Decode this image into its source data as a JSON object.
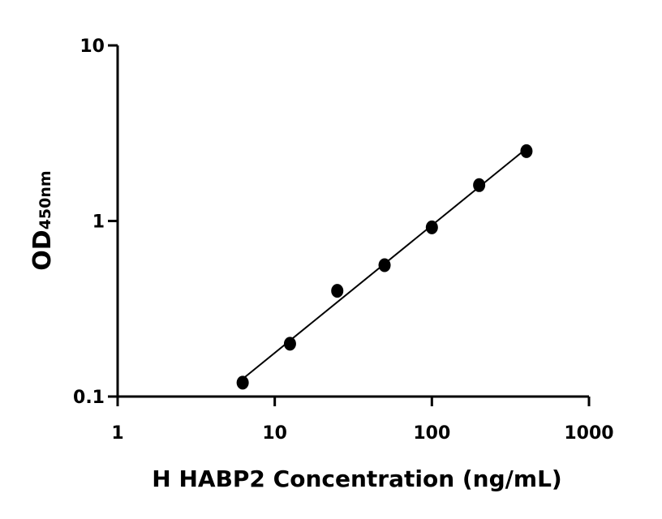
{
  "chart_data": {
    "type": "scatter",
    "xlabel": "H HABP2 Concentration (ng/mL)",
    "ylabel": "OD",
    "ylabel_sub": "450nm",
    "x": [
      6.25,
      12.5,
      25,
      50,
      100,
      200,
      400
    ],
    "values": [
      0.12,
      0.2,
      0.4,
      0.56,
      0.92,
      1.6,
      2.5
    ],
    "color": "#000000",
    "xlog": true,
    "ylog": true,
    "xlim": [
      1,
      1000
    ],
    "ylim": [
      0.1,
      10
    ],
    "xticks": [
      1,
      10,
      100,
      1000
    ],
    "yticks": [
      0.1,
      1,
      10
    ],
    "fit_line": true
  }
}
